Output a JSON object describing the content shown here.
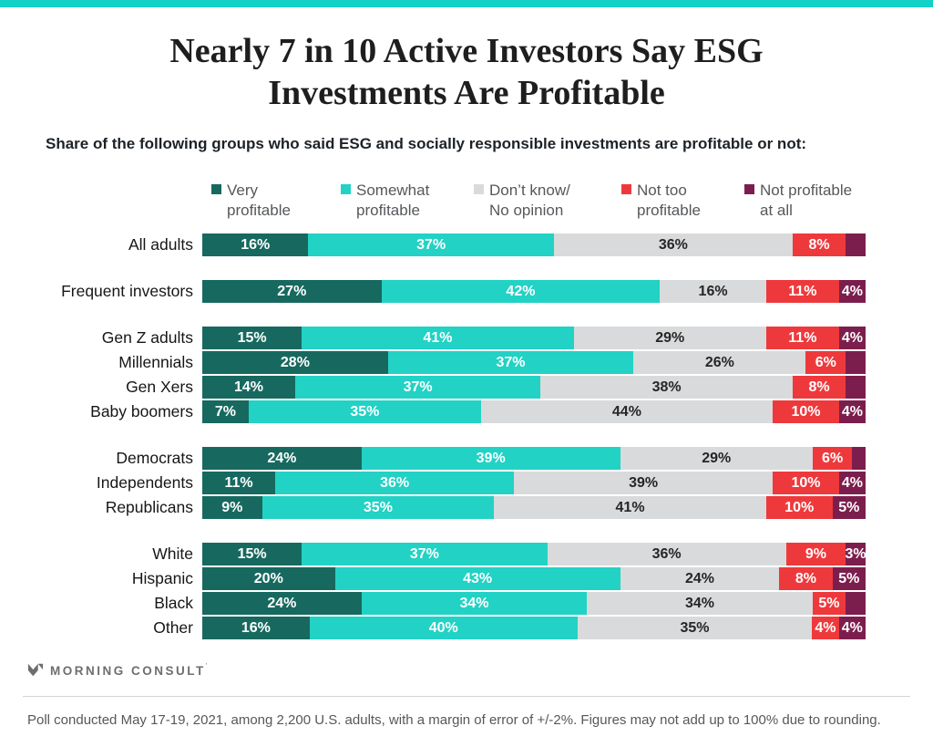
{
  "header": {
    "title_line1": "Nearly 7 in 10 Active Investors Say ESG",
    "title_line2": "Investments Are Profitable",
    "subtitle": "Share of the following groups who said ESG and socially responsible investments are profitable or not:"
  },
  "colors": {
    "accent_strip": "#12d2c5",
    "very_profitable": "#17695f",
    "somewhat_profitable": "#22d2c5",
    "dont_know": "#d9dadb",
    "not_too_profitable": "#ee393c",
    "not_profitable_at_all": "#7c1e4d",
    "gray_segment_text": "#262626"
  },
  "legend": {
    "items": [
      {
        "key": "very-profitable",
        "line1": "Very",
        "line2": "profitable",
        "color": "#17695f"
      },
      {
        "key": "somewhat-profitable",
        "line1": "Somewhat",
        "line2": "profitable",
        "color": "#22d2c5"
      },
      {
        "key": "dont-know",
        "line1": "Don’t know/",
        "line2": "No opinion",
        "color": "#d9dadb"
      },
      {
        "key": "not-too-profitable",
        "line1": "Not too",
        "line2": "profitable",
        "color": "#ee393c"
      },
      {
        "key": "not-profitable-at-all",
        "line1": "Not profitable",
        "line2": "at all",
        "color": "#7c1e4d"
      }
    ]
  },
  "chart_data": {
    "type": "bar",
    "orientation": "horizontal",
    "stacked": true,
    "unit": "%",
    "xlim": [
      0,
      100
    ],
    "series_names": [
      "Very profitable",
      "Somewhat profitable",
      "Don’t know/No opinion",
      "Not too profitable",
      "Not profitable at all"
    ],
    "series_keys": [
      "very-profitable",
      "somewhat-profitable",
      "dont-know",
      "not-too-profitable",
      "not-profitable-at-all"
    ],
    "series_colors": [
      "#17695f",
      "#22d2c5",
      "#d9dadb",
      "#ee393c",
      "#7c1e4d"
    ],
    "groups": [
      {
        "rows": [
          {
            "label": "All adults",
            "values": [
              16,
              37,
              36,
              8,
              3
            ],
            "value_labels": [
              "16%",
              "37%",
              "36%",
              "8%",
              ""
            ]
          }
        ]
      },
      {
        "rows": [
          {
            "label": "Frequent investors",
            "values": [
              27,
              42,
              16,
              11,
              4
            ],
            "value_labels": [
              "27%",
              "42%",
              "16%",
              "11%",
              "4%"
            ]
          }
        ]
      },
      {
        "rows": [
          {
            "label": "Gen Z adults",
            "values": [
              15,
              41,
              29,
              11,
              4
            ],
            "value_labels": [
              "15%",
              "41%",
              "29%",
              "11%",
              "4%"
            ]
          },
          {
            "label": "Millennials",
            "values": [
              28,
              37,
              26,
              6,
              3
            ],
            "value_labels": [
              "28%",
              "37%",
              "26%",
              "6%",
              ""
            ]
          },
          {
            "label": "Gen Xers",
            "values": [
              14,
              37,
              38,
              8,
              3
            ],
            "value_labels": [
              "14%",
              "37%",
              "38%",
              "8%",
              ""
            ]
          },
          {
            "label": "Baby boomers",
            "values": [
              7,
              35,
              44,
              10,
              4
            ],
            "value_labels": [
              "7%",
              "35%",
              "44%",
              "10%",
              "4%"
            ]
          }
        ]
      },
      {
        "rows": [
          {
            "label": "Democrats",
            "values": [
              24,
              39,
              29,
              6,
              2
            ],
            "value_labels": [
              "24%",
              "39%",
              "29%",
              "6%",
              ""
            ]
          },
          {
            "label": "Independents",
            "values": [
              11,
              36,
              39,
              10,
              4
            ],
            "value_labels": [
              "11%",
              "36%",
              "39%",
              "10%",
              "4%"
            ]
          },
          {
            "label": "Republicans",
            "values": [
              9,
              35,
              41,
              10,
              5
            ],
            "value_labels": [
              "9%",
              "35%",
              "41%",
              "10%",
              "5%"
            ]
          }
        ]
      },
      {
        "rows": [
          {
            "label": "White",
            "values": [
              15,
              37,
              36,
              9,
              3
            ],
            "value_labels": [
              "15%",
              "37%",
              "36%",
              "9%",
              "3%"
            ]
          },
          {
            "label": "Hispanic",
            "values": [
              20,
              43,
              24,
              8,
              5
            ],
            "value_labels": [
              "20%",
              "43%",
              "24%",
              "8%",
              "5%"
            ]
          },
          {
            "label": "Black",
            "values": [
              24,
              34,
              34,
              5,
              3
            ],
            "value_labels": [
              "24%",
              "34%",
              "34%",
              "5%",
              ""
            ]
          },
          {
            "label": "Other",
            "values": [
              16,
              40,
              35,
              4,
              4
            ],
            "value_labels": [
              "16%",
              "40%",
              "35%",
              "4%",
              "4%"
            ]
          }
        ]
      }
    ]
  },
  "footer": {
    "brand": "MORNING CONSULT",
    "brand_mark": "’",
    "note": "Poll conducted May 17-19, 2021, among 2,200 U.S. adults, with a margin of error of +/-2%. Figures may not add up to 100% due to rounding."
  }
}
